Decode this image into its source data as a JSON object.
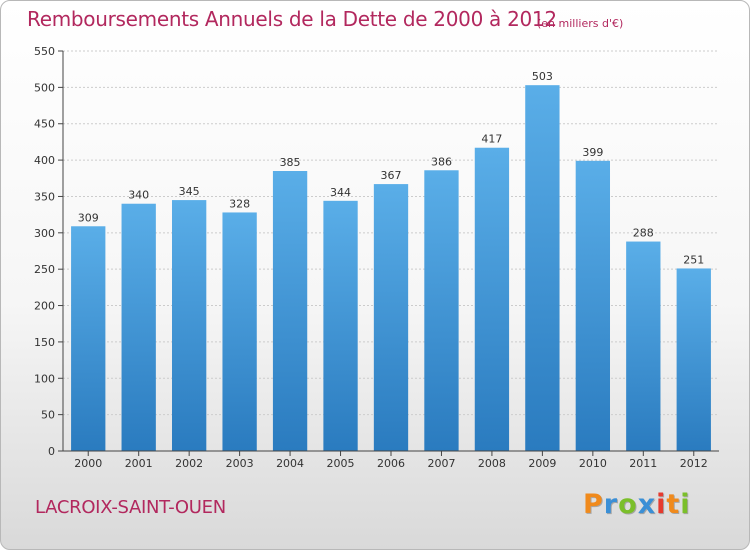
{
  "header": {
    "title": "Remboursements Annuels de la Dette de 2000 à 2012",
    "unit": "(en milliers d'€)"
  },
  "footer": {
    "city": "LACROIX-SAINT-OUEN",
    "logo": [
      "P",
      "r",
      "o",
      "x",
      "i",
      "t",
      "i"
    ]
  },
  "colors": {
    "title": "#b2285e",
    "bar_top": "#5aaee8",
    "bar_bottom": "#2a7bbf"
  },
  "chart_data": {
    "type": "bar",
    "title": "Remboursements Annuels de la Dette de 2000 à 2012",
    "xlabel": "",
    "ylabel": "",
    "categories": [
      "2000",
      "2001",
      "2002",
      "2003",
      "2004",
      "2005",
      "2006",
      "2007",
      "2008",
      "2009",
      "2010",
      "2011",
      "2012"
    ],
    "values": [
      309,
      340,
      345,
      328,
      385,
      344,
      367,
      386,
      417,
      503,
      399,
      288,
      251
    ],
    "ylim": [
      0,
      550
    ],
    "yticks": [
      0,
      50,
      100,
      150,
      200,
      250,
      300,
      350,
      400,
      450,
      500,
      550
    ],
    "grid": true,
    "legend": "none"
  }
}
